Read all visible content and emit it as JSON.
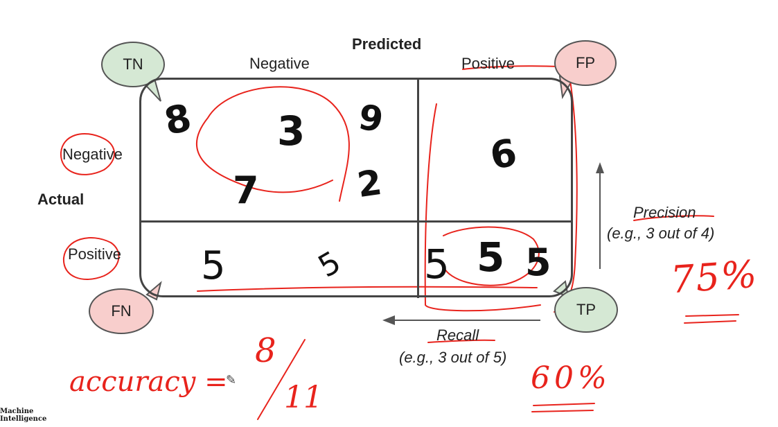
{
  "headers": {
    "predicted": "Predicted",
    "actual": "Actual",
    "col_negative": "Negative",
    "col_positive": "Positive",
    "row_negative": "Negative",
    "row_positive": "Positive"
  },
  "bubbles": {
    "tn": {
      "label": "TN",
      "color": "#d5e8d4"
    },
    "fp": {
      "label": "FP",
      "color": "#f8cecc"
    },
    "fn": {
      "label": "FN",
      "color": "#f8cecc"
    },
    "tp": {
      "label": "TP",
      "color": "#d5e8d4"
    }
  },
  "cells": {
    "tn_digits": [
      "8",
      "3",
      "9",
      "7",
      "2"
    ],
    "fp_digits": [
      "6"
    ],
    "fn_digits": [
      "5",
      "5"
    ],
    "tp_digits": [
      "5",
      "5",
      "5"
    ]
  },
  "metrics": {
    "precision_title": "Precision",
    "precision_example": "(e.g., 3 out of 4)",
    "recall_title": "Recall",
    "recall_example": "(e.g., 3 out of 5)"
  },
  "handwriting": {
    "precision_value": "75%",
    "recall_value": "60%",
    "accuracy_label": "accuracy =",
    "accuracy_numerator": "8",
    "accuracy_denominator": "11",
    "ink_color": "#e8231c"
  },
  "brand": {
    "line1": "Machine",
    "line2": "Intelligence"
  }
}
